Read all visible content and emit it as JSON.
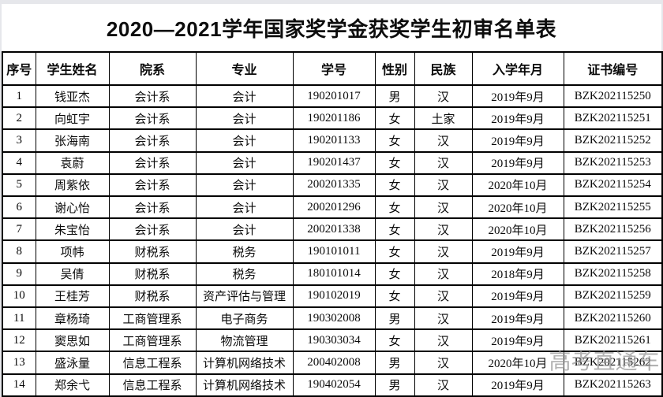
{
  "title": "2020—2021学年国家奖学金获奖学生初审名单表",
  "watermark": "高考直通车",
  "colors": {
    "text": "#0a0a0a",
    "background": "#ffffff",
    "table_border": "#000000",
    "watermark": "#949494",
    "page_edge": "#e6e7eb"
  },
  "table": {
    "headers": [
      "序号",
      "学生姓名",
      "院系",
      "专业",
      "学号",
      "性别",
      "民族",
      "入学年月",
      "证书编号"
    ],
    "rows": [
      [
        "1",
        "钱亚杰",
        "会计系",
        "会计",
        "190201017",
        "男",
        "汉",
        "2019年9月",
        "BZK202115250"
      ],
      [
        "2",
        "向虹宇",
        "会计系",
        "会计",
        "190201186",
        "女",
        "土家",
        "2019年9月",
        "BZK202115251"
      ],
      [
        "3",
        "张海南",
        "会计系",
        "会计",
        "190201133",
        "女",
        "汉",
        "2019年9月",
        "BZK202115252"
      ],
      [
        "4",
        "袁蔚",
        "会计系",
        "会计",
        "190201437",
        "女",
        "汉",
        "2019年9月",
        "BZK202115253"
      ],
      [
        "5",
        "周紫依",
        "会计系",
        "会计",
        "200201335",
        "女",
        "汉",
        "2020年10月",
        "BZK202115254"
      ],
      [
        "6",
        "谢心怡",
        "会计系",
        "会计",
        "200201296",
        "女",
        "汉",
        "2020年10月",
        "BZK202115255"
      ],
      [
        "7",
        "朱宝怡",
        "会计系",
        "会计",
        "200201338",
        "女",
        "汉",
        "2020年10月",
        "BZK202115256"
      ],
      [
        "8",
        "项帏",
        "财税系",
        "税务",
        "190101011",
        "女",
        "汉",
        "2019年9月",
        "BZK202115257"
      ],
      [
        "9",
        "吴倩",
        "财税系",
        "税务",
        "180101014",
        "女",
        "汉",
        "2018年9月",
        "BZK202115258"
      ],
      [
        "10",
        "王桂芳",
        "财税系",
        "资产评估与管理",
        "190102019",
        "女",
        "汉",
        "2019年9月",
        "BZK202115259"
      ],
      [
        "11",
        "章杨琦",
        "工商管理系",
        "电子商务",
        "190302008",
        "男",
        "汉",
        "2019年9月",
        "BZK202115260"
      ],
      [
        "12",
        "窦思如",
        "工商管理系",
        "物流管理",
        "190303034",
        "女",
        "汉",
        "2019年9月",
        "BZK202115261"
      ],
      [
        "13",
        "盛泳量",
        "信息工程系",
        "计算机网络技术",
        "200402008",
        "男",
        "汉",
        "2020年10月",
        "BZK202115262"
      ],
      [
        "14",
        "郑余弋",
        "信息工程系",
        "计算机网络技术",
        "190402054",
        "男",
        "汉",
        "2019年9月",
        "BZK202115263"
      ]
    ]
  }
}
